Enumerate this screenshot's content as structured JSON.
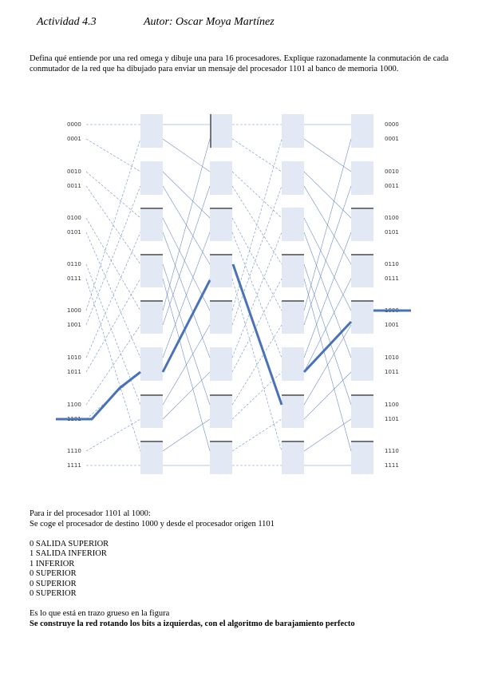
{
  "header": {
    "activity": "Actividad 4.3",
    "author": "Autor: Oscar Moya Martínez"
  },
  "question": "Defina qué entiende por una red omega y dibuje una para 16 procesadores. Explique razonadamente la conmutación de cada conmutador de la red que ha dibujado para enviar un mensaje del procesador 1101 al banco de memoria 1000.",
  "diagram": {
    "left_labels": [
      "0000",
      "0001",
      "0010",
      "0011",
      "0100",
      "0101",
      "0110",
      "0111",
      "1000",
      "1001",
      "1010",
      "1011",
      "1100",
      "1101",
      "1110",
      "1111"
    ],
    "right_labels": [
      "0000",
      "0001",
      "0010",
      "0011",
      "0100",
      "0101",
      "0110",
      "0111",
      "1000",
      "1001",
      "1010",
      "1011",
      "1100",
      "1101",
      "1110",
      "1111"
    ]
  },
  "answer": {
    "intro": [
      "Para ir del procesador 1101 al 1000:",
      "Se coge el procesador de destino 1000 y desde el procesador origen 1101"
    ],
    "steps": [
      "0 SALIDA SUPERIOR",
      "1 SALIDA INFERIOR",
      "1 INFERIOR",
      "0 SUPERIOR",
      "0 SUPERIOR",
      "0 SUPERIOR"
    ],
    "note": "Es lo que está en trazo grueso en la figura",
    "conclusion": "Se construye la red rotando los bits a izquierdas, con el algoritmo de barajamiento perfecto"
  }
}
